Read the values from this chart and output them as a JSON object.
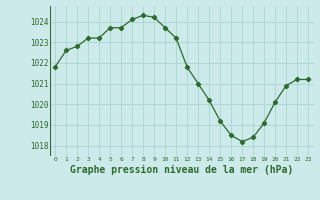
{
  "x": [
    0,
    1,
    2,
    3,
    4,
    5,
    6,
    7,
    8,
    9,
    10,
    11,
    12,
    13,
    14,
    15,
    16,
    17,
    18,
    19,
    20,
    21,
    22,
    23
  ],
  "y": [
    1021.8,
    1022.6,
    1022.8,
    1023.2,
    1023.2,
    1023.7,
    1023.7,
    1024.1,
    1024.3,
    1024.2,
    1023.7,
    1023.2,
    1021.8,
    1021.0,
    1020.2,
    1019.2,
    1018.5,
    1018.2,
    1018.4,
    1019.1,
    1020.1,
    1020.9,
    1021.2,
    1021.2
  ],
  "line_color": "#2d6a2d",
  "marker": "D",
  "marker_size": 2.2,
  "bg_color": "#cceaea",
  "grid_color": "#aad4d4",
  "xlabel": "Graphe pression niveau de la mer (hPa)",
  "xlabel_fontsize": 7,
  "ytick_labels": [
    1018,
    1019,
    1020,
    1021,
    1022,
    1023,
    1024
  ],
  "xtick_labels": [
    0,
    1,
    2,
    3,
    4,
    5,
    6,
    7,
    8,
    9,
    10,
    11,
    12,
    13,
    14,
    15,
    16,
    17,
    18,
    19,
    20,
    21,
    22,
    23
  ],
  "ylim": [
    1017.5,
    1024.75
  ],
  "xlim": [
    -0.5,
    23.5
  ]
}
